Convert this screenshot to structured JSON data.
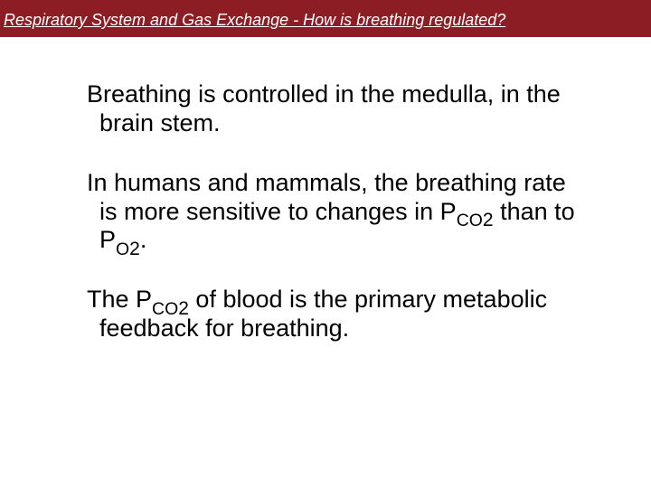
{
  "header": {
    "background_color": "#8c1d24",
    "text_color": "#ffffff",
    "text": "Respiratory System and Gas Exchange - How is breathing regulated?",
    "font_style": "italic",
    "underline": true,
    "fontsize": 18
  },
  "body": {
    "background_color": "#ffffff",
    "text_color": "#000000",
    "fontsize": 27,
    "paragraphs": {
      "p1": "Breathing is controlled in the medulla, in the brain stem.",
      "p2_pre": "In humans and mammals, the breathing rate is more sensitive to changes in P",
      "p2_co": "CO",
      "p2_two_a": "2",
      "p2_mid": " than to P",
      "p2_o": "O",
      "p2_two_b": "2",
      "p2_end": ".",
      "p3_pre": "The P",
      "p3_co": "CO",
      "p3_two": "2",
      "p3_end": " of blood is the primary metabolic feedback for breathing."
    }
  }
}
